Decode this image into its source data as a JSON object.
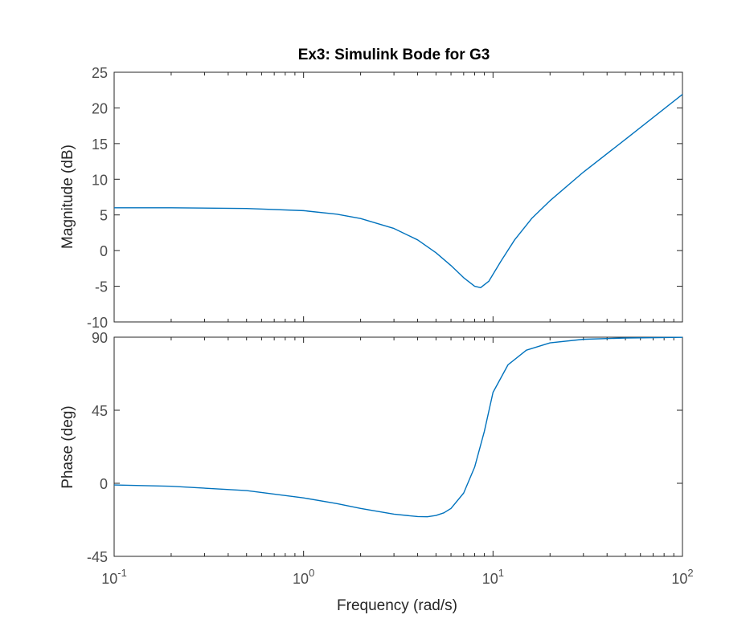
{
  "figure": {
    "title": "Ex3: Simulink Bode for G3",
    "xlabel": "Frequency  (rad/s)"
  },
  "chart_data": [
    {
      "type": "line",
      "panel": "magnitude",
      "title": "Ex3: Simulink Bode for G3",
      "xlabel": "",
      "ylabel": "Magnitude (dB)",
      "xscale": "log",
      "xlim": [
        0.1,
        100
      ],
      "ylim": [
        -10,
        25
      ],
      "yticks": [
        25,
        20,
        15,
        10,
        5,
        0,
        -5,
        -10
      ],
      "ytick_labels": [
        "25",
        "20",
        "15",
        "10",
        "5",
        "0",
        "-5",
        "-10"
      ],
      "grid": false,
      "line_color": "#0072bd",
      "series": [
        {
          "x": [
            0.1,
            0.2,
            0.5,
            1,
            1.5,
            2,
            3,
            4,
            5,
            6,
            7,
            8,
            8.6,
            9.5,
            11,
            13,
            16,
            20,
            30,
            50,
            100
          ],
          "y": [
            6.0,
            6.0,
            5.9,
            5.6,
            5.1,
            4.5,
            3.1,
            1.5,
            -0.3,
            -2.1,
            -3.8,
            -5.0,
            -5.2,
            -4.3,
            -1.5,
            1.5,
            4.5,
            7.0,
            11.0,
            15.6,
            21.9
          ]
        }
      ]
    },
    {
      "type": "line",
      "panel": "phase",
      "title": "",
      "xlabel": "Frequency  (rad/s)",
      "ylabel": "Phase (deg)",
      "xscale": "log",
      "xlim": [
        0.1,
        100
      ],
      "ylim": [
        -45,
        90
      ],
      "yticks": [
        90,
        45,
        0,
        -45
      ],
      "ytick_labels": [
        "90",
        "45",
        "0",
        "-45"
      ],
      "xtick_labels": [
        {
          "base": "10",
          "exp": "-1"
        },
        {
          "base": "10",
          "exp": "0"
        },
        {
          "base": "10",
          "exp": "1"
        },
        {
          "base": "10",
          "exp": "2"
        }
      ],
      "grid": false,
      "line_color": "#0072bd",
      "series": [
        {
          "x": [
            0.1,
            0.2,
            0.5,
            1,
            1.5,
            2,
            3,
            4,
            4.5,
            5,
            5.5,
            6,
            7,
            8,
            9,
            10,
            12,
            15,
            20,
            30,
            50,
            100
          ],
          "y": [
            -1.0,
            -1.8,
            -4.5,
            -9.0,
            -12.5,
            -15.5,
            -19.0,
            -20.5,
            -20.6,
            -19.8,
            -18.2,
            -15.5,
            -6.0,
            10.0,
            32.0,
            56.0,
            73.0,
            82.0,
            86.5,
            88.7,
            89.5,
            89.9
          ]
        }
      ]
    }
  ]
}
